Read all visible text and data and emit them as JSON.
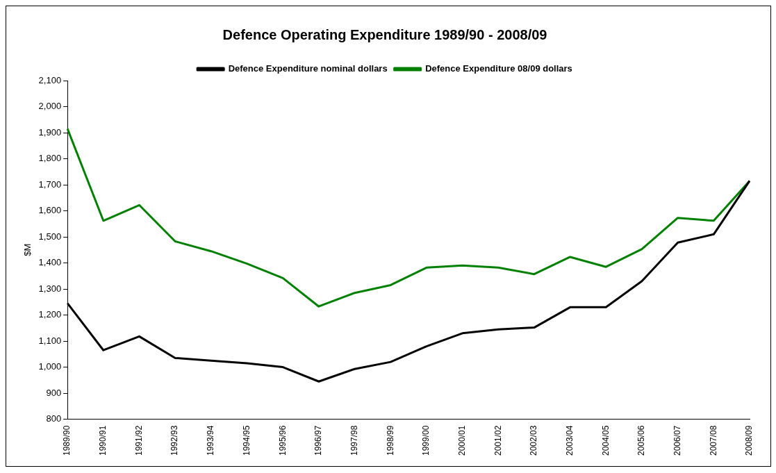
{
  "chart_data": {
    "type": "line",
    "title": "Defence Operating Expenditure 1989/90 - 2008/09",
    "ylabel": "$M",
    "categories": [
      "1989/90",
      "1990/91",
      "1991/92",
      "1992/93",
      "1993/94",
      "1994/95",
      "1995/96",
      "1996/97",
      "1997/98",
      "1998/99",
      "1999/00",
      "2000/01",
      "2001/02",
      "2002/03",
      "2003/04",
      "2004/05",
      "2005/06",
      "2006/07",
      "2007/08",
      "2008/09"
    ],
    "series": [
      {
        "name": "Defence Expenditure nominal dollars",
        "color": "#000000",
        "values": [
          1245,
          1065,
          1118,
          1035,
          1025,
          1015,
          1000,
          945,
          993,
          1020,
          1080,
          1130,
          1145,
          1152,
          1230,
          1230,
          1330,
          1478,
          1510,
          1715
        ]
      },
      {
        "name": "Defence Expenditure 08/09 dollars",
        "color": "#008000",
        "values": [
          1915,
          1562,
          1622,
          1483,
          1445,
          1397,
          1342,
          1233,
          1285,
          1315,
          1382,
          1390,
          1382,
          1357,
          1423,
          1385,
          1453,
          1573,
          1562,
          1715
        ]
      }
    ],
    "ylim": [
      800,
      2100
    ],
    "yticks": [
      800,
      900,
      {
        "value": 1000,
        "label": "1,000"
      },
      {
        "value": 1100,
        "label": "1,100"
      },
      {
        "value": 1200,
        "label": "1,200"
      },
      {
        "value": 1300,
        "label": "1,300"
      },
      {
        "value": 1400,
        "label": "1,400"
      },
      {
        "value": 1500,
        "label": "1,500"
      },
      {
        "value": 1600,
        "label": "1,600"
      },
      {
        "value": 1700,
        "label": "1,700"
      },
      {
        "value": 1800,
        "label": "1,800"
      },
      {
        "value": 1900,
        "label": "1,900"
      },
      {
        "value": 2000,
        "label": "2,000"
      },
      {
        "value": 2100,
        "label": "2,100"
      }
    ],
    "grid": false,
    "legend": "top",
    "marker": "none",
    "line_style": "solid"
  }
}
